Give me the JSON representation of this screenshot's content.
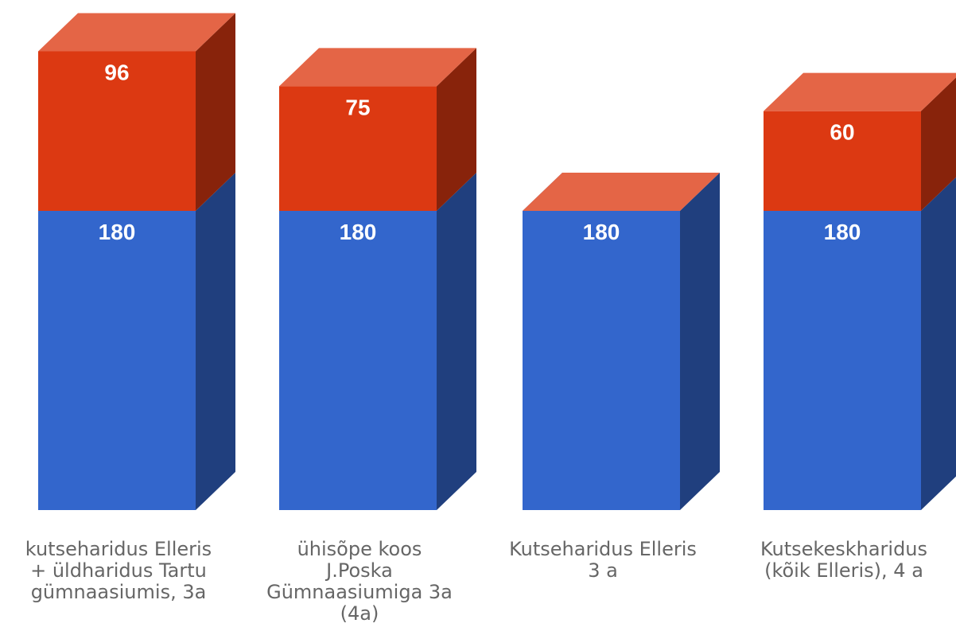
{
  "chart_data": {
    "type": "bar",
    "stacked": true,
    "three_d": true,
    "categories": [
      [
        "kutseharidus Elleris",
        "+ üldharidus Tartu",
        "gümnaasiumis, 3a"
      ],
      [
        "ühisõpe koos",
        "J.Poska",
        "Gümnaasiumiga 3a",
        "(4a)"
      ],
      [
        "Kutseharidus Elleris",
        "3 a"
      ],
      [
        "Kutsekeskharidus",
        "(kõik Elleris), 4 a"
      ]
    ],
    "series": [
      {
        "values": [
          180,
          180,
          180,
          180
        ],
        "color": "#3366cc"
      },
      {
        "values": [
          96,
          75,
          0,
          60
        ],
        "color": "#dc3912"
      }
    ],
    "data_labels": true,
    "grid": false,
    "legend": "none"
  }
}
